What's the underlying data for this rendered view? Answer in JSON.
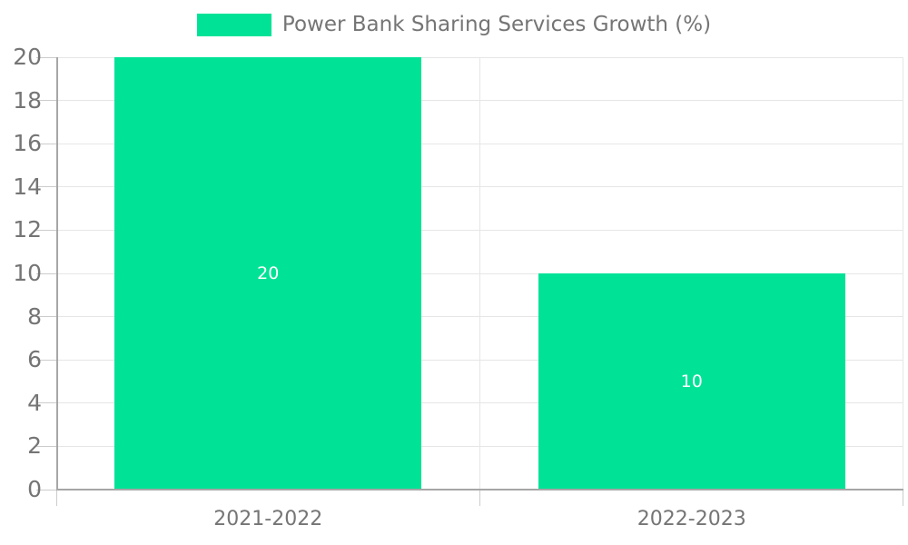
{
  "legend": {
    "label": "Power Bank Sharing Services Growth (%)",
    "swatch_color": "#00E396"
  },
  "chart_data": {
    "type": "bar",
    "title": "Power Bank Sharing Services Growth (%)",
    "categories": [
      "2021-2022",
      "2022-2023"
    ],
    "values": [
      20,
      10
    ],
    "series": [
      {
        "name": "Power Bank Sharing Services Growth (%)",
        "values": [
          20,
          10
        ]
      }
    ],
    "data_labels": [
      "20",
      "10"
    ],
    "xlabel": "",
    "ylabel": "",
    "ylim": [
      0,
      20
    ],
    "ytick_step": 2,
    "yticks": [
      0,
      2,
      4,
      6,
      8,
      10,
      12,
      14,
      16,
      18,
      20
    ],
    "grid": true,
    "legend_position": "top-center",
    "colors": {
      "bar": "#00E396",
      "data_label_text": "#ffffff",
      "axis_line": "#a6a6a6",
      "gridline": "#e6e6e6",
      "tick": "#cccccc",
      "label_text": "#757575"
    }
  }
}
